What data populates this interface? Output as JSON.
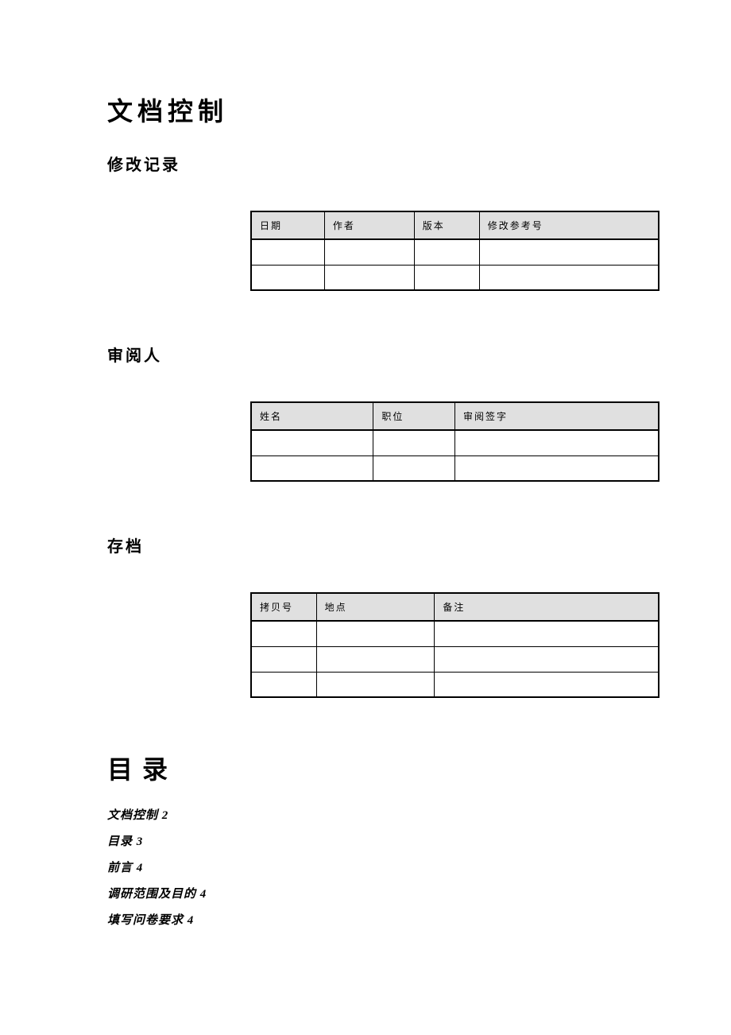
{
  "doc": {
    "title": "文档控制",
    "sections": {
      "revision": {
        "heading": "修改记录",
        "columns": [
          "日期",
          "作者",
          "版本",
          "修改参考号"
        ],
        "col_widths": [
          "18%",
          "22%",
          "16%",
          "44%"
        ],
        "row_count": 2
      },
      "reviewer": {
        "heading": "审阅人",
        "columns": [
          "姓名",
          "职位",
          "审阅签字"
        ],
        "col_widths": [
          "30%",
          "20%",
          "50%"
        ],
        "row_count": 2
      },
      "archive": {
        "heading": "存档",
        "columns": [
          "拷贝号",
          "地点",
          "备注"
        ],
        "col_widths": [
          "16%",
          "29%",
          "55%"
        ],
        "row_count": 3
      }
    },
    "toc": {
      "heading": "目录",
      "items": [
        "文档控制 2",
        "目录 3",
        "前言 4",
        "调研范围及目的 4",
        "填写问卷要求 4"
      ]
    }
  },
  "style": {
    "page_bg": "#ffffff",
    "text_color": "#000000",
    "header_bg": "#e0e0e0",
    "border_color": "#000000",
    "h1_fontsize": 32,
    "h2_fontsize": 20,
    "th_fontsize": 12,
    "toc_item_fontsize": 15
  }
}
